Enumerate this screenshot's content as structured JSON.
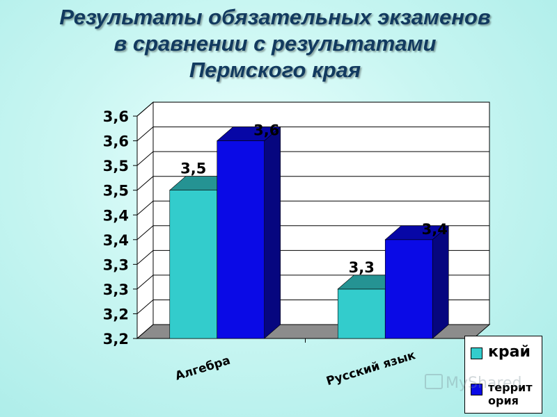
{
  "title_lines": [
    "Результаты обязательных экзаменов",
    "в сравнении с результатами",
    "Пермского края"
  ],
  "chart_data": {
    "type": "bar",
    "categories": [
      "Алгебра",
      "Русский язык"
    ],
    "series": [
      {
        "name": "край",
        "values": [
          3.5,
          3.3
        ],
        "labels": [
          "3,5",
          "3,3"
        ],
        "color": "#33cccc"
      },
      {
        "name": "территория",
        "values": [
          3.6,
          3.4
        ],
        "labels": [
          "3,6",
          "3,4"
        ],
        "color": "#0a0ae6"
      }
    ],
    "ylim": [
      3.2,
      3.6
    ],
    "y_ticks": [
      3.2,
      3.25,
      3.3,
      3.35,
      3.4,
      3.45,
      3.5,
      3.55,
      3.6,
      3.65
    ],
    "y_tick_labels": [
      "3,2",
      "3,2",
      "3,3",
      "3,3",
      "3,4",
      "3,4",
      "3,5",
      "3,5",
      "3,6",
      "3,6"
    ],
    "grid": true,
    "legend_position": "bottom-right"
  },
  "legend": {
    "item1": "край",
    "item2": "террит ория"
  },
  "watermark": "MyShared"
}
